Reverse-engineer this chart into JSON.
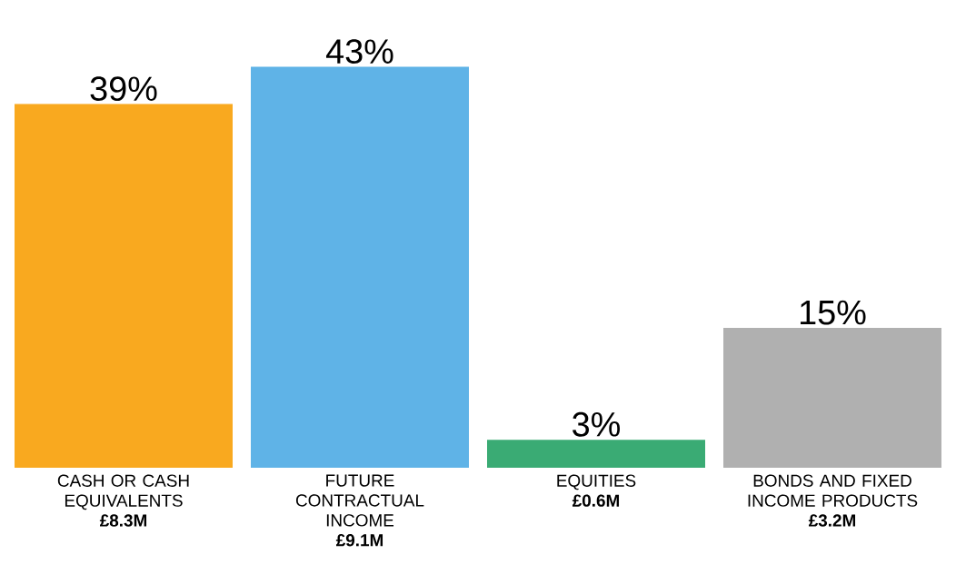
{
  "chart_data": {
    "type": "bar",
    "categories": [
      "CASH OR CASH EQUIVALENTS",
      "FUTURE CONTRACTUAL INCOME",
      "EQUITIES",
      "BONDS AND FIXED INCOME PRODUCTS"
    ],
    "values": [
      39,
      43,
      3,
      15
    ],
    "value_labels": [
      "39%",
      "43%",
      "3%",
      "15%"
    ],
    "colors": [
      "#f9a91f",
      "#5fb3e7",
      "#3aab74",
      "#b0b0b0"
    ],
    "annotations": [
      "£8.3M",
      "£9.1M",
      "£0.6M",
      "£3.2M"
    ]
  }
}
